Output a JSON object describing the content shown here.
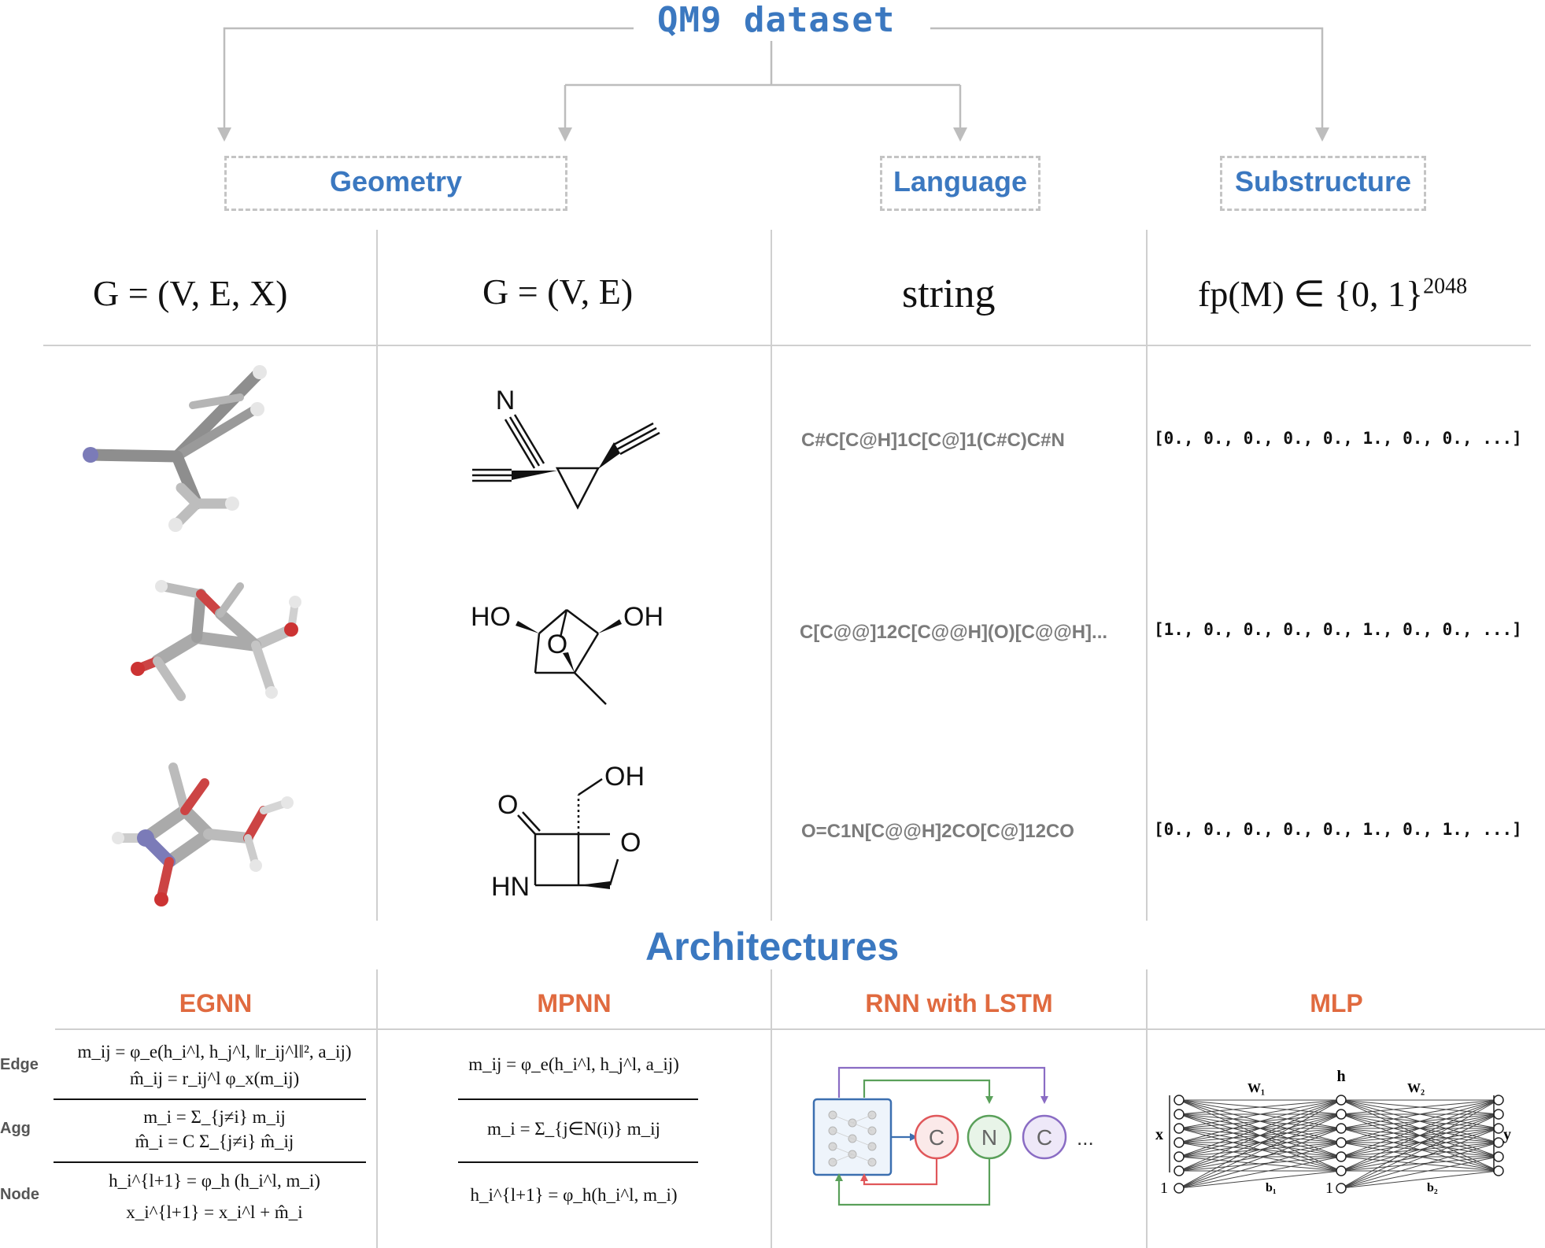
{
  "title": "QM9 dataset",
  "categories": {
    "geometry": "Geometry",
    "language": "Language",
    "substructure": "Substructure"
  },
  "representations": {
    "geometric_graph": "G = (V, E, X)",
    "graph": "G = (V, E)",
    "string": "string",
    "fingerprint_base": "fp(M) ∈ {0, 1}",
    "fingerprint_exp": "2048"
  },
  "molecules": [
    {
      "smiles": "C#C[C@H]1C[C@]1(C#C)C#N",
      "fingerprint": "[0., 0., 0., 0., 0., 1., 0., 0., ...]",
      "atom_labels": [
        "N"
      ]
    },
    {
      "smiles": "C[C@@]12C[C@@H](O)[C@@H]...",
      "fingerprint": "[1., 0., 0., 0., 0., 1., 0., 0., ...]",
      "atom_labels": [
        "HO",
        "OH",
        "O"
      ]
    },
    {
      "smiles": "O=C1N[C@@H]2CO[C@]12CO",
      "fingerprint": "[0., 0., 0., 0., 0., 1., 0., 1., ...]",
      "atom_labels": [
        "OH",
        "O",
        "O",
        "HN"
      ]
    }
  ],
  "architectures": {
    "title": "Architectures",
    "names": [
      "EGNN",
      "MPNN",
      "RNN with LSTM",
      "MLP"
    ],
    "row_labels": [
      "Edge",
      "Agg",
      "Node"
    ],
    "egnn": {
      "edge1": "m_ij = φ_e(h_i^l, h_j^l, ‖r_ij^l‖², a_ij)",
      "edge2": "m̂_ij = r_ij^l φ_x(m_ij)",
      "agg1": "m_i = Σ_{j≠i} m_ij",
      "agg2": "m̂_i = C Σ_{j≠i} m̂_ij",
      "node1": "h_i^{l+1} = φ_h (h_i^l, m_i)",
      "node2": "x_i^{l+1} = x_i^l + m̂_i"
    },
    "mpnn": {
      "edge": "m_ij = φ_e(h_i^l, h_j^l, a_ij)",
      "agg": "m_i = Σ_{j∈N(i)} m_ij",
      "node": "h_i^{l+1} = φ_h(h_i^l, m_i)"
    },
    "rnn": {
      "tokens": [
        "C",
        "N",
        "C"
      ],
      "ellipsis": "..."
    },
    "mlp": {
      "labels": {
        "x": "x",
        "y": "y",
        "h": "h",
        "w1": "W₁",
        "w2": "W₂",
        "b1": "b₁",
        "b2": "b₂",
        "bias1": "1",
        "bias2": "1"
      }
    }
  },
  "colors": {
    "title_blue": "#3b78c0",
    "arch_orange": "#e06a3f",
    "smiles_gray": "#7b7b7b",
    "rnn_c_red": "#e0575a",
    "rnn_n_green": "#5aa05a",
    "rnn_c_purple": "#8a6cc4",
    "rnn_box_blue": "#3b6fb0"
  }
}
